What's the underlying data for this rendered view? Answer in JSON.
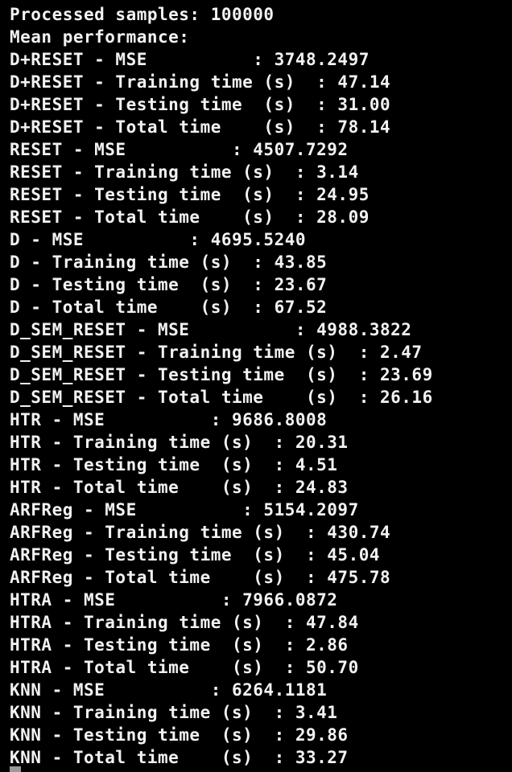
{
  "terminal": {
    "lines": [
      "Processed samples: 100000",
      "Mean performance:",
      "D+RESET - MSE          : 3748.2497",
      "D+RESET - Training time (s)  : 47.14",
      "D+RESET - Testing time  (s)  : 31.00",
      "D+RESET - Total time    (s)  : 78.14",
      "RESET - MSE          : 4507.7292",
      "RESET - Training time (s)  : 3.14",
      "RESET - Testing time  (s)  : 24.95",
      "RESET - Total time    (s)  : 28.09",
      "D - MSE          : 4695.5240",
      "D - Training time (s)  : 43.85",
      "D - Testing time  (s)  : 23.67",
      "D - Total time    (s)  : 67.52",
      "D_SEM_RESET - MSE          : 4988.3822",
      "D_SEM_RESET - Training time (s)  : 2.47",
      "D_SEM_RESET - Testing time  (s)  : 23.69",
      "D_SEM_RESET - Total time    (s)  : 26.16",
      "HTR - MSE          : 9686.8008",
      "HTR - Training time (s)  : 20.31",
      "HTR - Testing time  (s)  : 4.51",
      "HTR - Total time    (s)  : 24.83",
      "ARFReg - MSE          : 5154.2097",
      "ARFReg - Training time (s)  : 430.74",
      "ARFReg - Testing time  (s)  : 45.04",
      "ARFReg - Total time    (s)  : 475.78",
      "HTRA - MSE          : 7966.0872",
      "HTRA - Training time (s)  : 47.84",
      "HTRA - Testing time  (s)  : 2.86",
      "HTRA - Total time    (s)  : 50.70",
      "KNN - MSE          : 6264.1181",
      "KNN - Training time (s)  : 3.41",
      "KNN - Testing time  (s)  : 29.86",
      "KNN - Total time    (s)  : 33.27"
    ]
  }
}
